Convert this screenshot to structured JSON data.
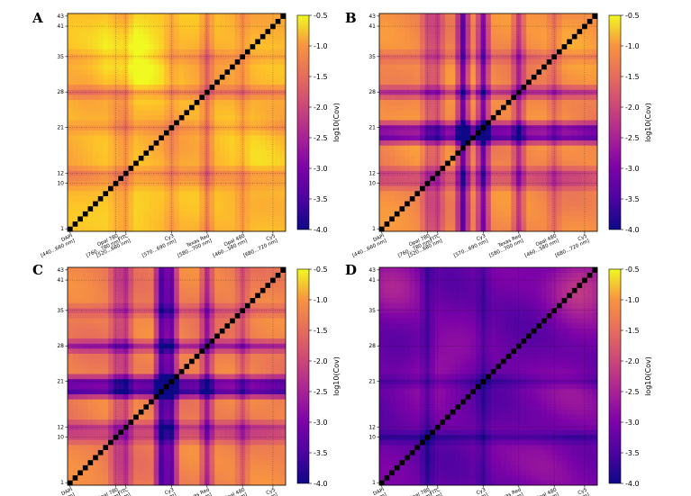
{
  "chart_data": {
    "type": "heatmap",
    "matrix_size": 43,
    "colormap": "plasma",
    "colorbar": {
      "label": "log10(Cov)",
      "vmin": -4.0,
      "vmax": -0.5,
      "ticks": [
        "-0.5",
        "-1.0",
        "-1.5",
        "-2.0",
        "-2.5",
        "-3.0",
        "-3.5",
        "-4.0"
      ],
      "tick_values": [
        -0.5,
        -1.0,
        -1.5,
        -2.0,
        -2.5,
        -3.0,
        -3.5,
        -4.0
      ]
    },
    "y_ticks": [
      "1",
      "10",
      "12",
      "21",
      "28",
      "35",
      "41",
      "43"
    ],
    "y_tick_values": [
      1,
      10,
      12,
      21,
      28,
      35,
      41,
      43
    ],
    "channel_boundaries": [
      10,
      12,
      21,
      28,
      35,
      41
    ],
    "x_channels": [
      {
        "name": "DAPI",
        "range": "[440...660 nm]",
        "bin": 1
      },
      {
        "name": "Opal 780",
        "range": "[760...780 nm]",
        "bin": 10
      },
      {
        "name": "FITC",
        "range": "[520...680 nm]",
        "bin": 12
      },
      {
        "name": "Cy3",
        "range": "[570...690 nm]",
        "bin": 21
      },
      {
        "name": "Texas Red",
        "range": "[580...700 nm]",
        "bin": 28
      },
      {
        "name": "Opal 480",
        "range": "[460...580 nm]",
        "bin": 35
      },
      {
        "name": "Cy5",
        "range": "[680...720 nm]",
        "bin": 41
      }
    ],
    "panels": [
      {
        "letter": "A",
        "base": -1.1,
        "row_dips": [
          {
            "bin": 28,
            "depth": 0.6
          },
          {
            "bin": 12,
            "depth": 0.5
          },
          {
            "bin": 21,
            "depth": 0.3
          },
          {
            "bin": 35,
            "depth": 0.3
          },
          {
            "bin": 10,
            "depth": 0.3
          }
        ],
        "col_dips": [
          {
            "bin": 28,
            "depth": 0.6
          },
          {
            "bin": 12,
            "depth": 0.5
          },
          {
            "bin": 21,
            "depth": 0.3
          },
          {
            "bin": 35,
            "depth": 0.3
          },
          {
            "bin": 10,
            "depth": 0.3
          }
        ],
        "bright": [
          {
            "r": 5,
            "c": 13,
            "amp": 0.5
          },
          {
            "r": 32,
            "c": 13,
            "amp": 0.45
          },
          {
            "r": 39,
            "c": 13,
            "amp": 0.7
          },
          {
            "r": 13,
            "c": 38,
            "amp": 0.4
          }
        ]
      },
      {
        "letter": "B",
        "base": -1.5,
        "row_dips": [
          {
            "bin": 19,
            "depth": 1.8
          },
          {
            "bin": 21,
            "depth": 1.6
          },
          {
            "bin": 28,
            "depth": 1.0
          },
          {
            "bin": 12,
            "depth": 0.7
          },
          {
            "bin": 10,
            "depth": 0.6
          },
          {
            "bin": 35,
            "depth": 0.4
          }
        ],
        "col_dips": [
          {
            "bin": 17,
            "depth": 1.8
          },
          {
            "bin": 21,
            "depth": 1.6
          },
          {
            "bin": 28,
            "depth": 1.0
          },
          {
            "bin": 12,
            "depth": 0.7
          },
          {
            "bin": 10,
            "depth": 0.6
          },
          {
            "bin": 35,
            "depth": 0.4
          }
        ],
        "bright": [
          {
            "r": 40,
            "c": 38,
            "amp": 0.3
          },
          {
            "r": 24,
            "c": 8,
            "amp": 0.2
          }
        ]
      },
      {
        "letter": "C",
        "base": -1.6,
        "row_dips": [
          {
            "bin": 19,
            "depth": 1.9
          },
          {
            "bin": 21,
            "depth": 1.7
          },
          {
            "bin": 28,
            "depth": 1.1
          },
          {
            "bin": 12,
            "depth": 0.8
          },
          {
            "bin": 10,
            "depth": 0.6
          },
          {
            "bin": 35,
            "depth": 0.5
          }
        ],
        "col_dips": [
          {
            "bin": 19,
            "depth": 1.9
          },
          {
            "bin": 21,
            "depth": 1.7
          },
          {
            "bin": 28,
            "depth": 1.1
          },
          {
            "bin": 12,
            "depth": 0.8
          },
          {
            "bin": 10,
            "depth": 0.6
          },
          {
            "bin": 35,
            "depth": 0.5
          }
        ],
        "bright": [
          {
            "r": 5,
            "c": 38,
            "amp": 0.2
          }
        ]
      },
      {
        "letter": "D",
        "base": -3.3,
        "row_dips": [
          {
            "bin": 10,
            "depth": 0.4
          },
          {
            "bin": 21,
            "depth": 0.3
          }
        ],
        "col_dips": [
          {
            "bin": 10,
            "depth": 0.4
          },
          {
            "bin": 21,
            "depth": 0.3
          }
        ],
        "bright": [
          {
            "r": 40,
            "c": 40,
            "amp": 0.9
          },
          {
            "r": 40,
            "c": 4,
            "amp": 0.5
          },
          {
            "r": 24,
            "c": 12,
            "amp": 0.4
          },
          {
            "r": 5,
            "c": 34,
            "amp": 0.4
          },
          {
            "r": 18,
            "c": 40,
            "amp": 0.4
          }
        ]
      }
    ]
  }
}
